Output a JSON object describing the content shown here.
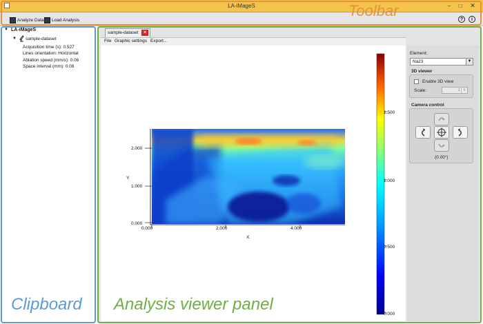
{
  "window": {
    "title": "LA-iMageS"
  },
  "toolbar": {
    "analyze_label": "Analyze Data",
    "load_label": "Load Analysis",
    "help_glyph": "?",
    "info_glyph": "i"
  },
  "annotations": {
    "toolbar": "Toolbar",
    "clipboard": "Clipboard",
    "analysis": "Analysis viewer panel"
  },
  "tree": {
    "root": "LA-iMageS",
    "dataset": "sample-dataset",
    "props": [
      "Acquisition time (s): 0.527",
      "Lines orientation: Horizontal",
      "Ablation speed (mm/s): 0.06",
      "Space interval (mm): 0.08"
    ]
  },
  "viewer": {
    "tab_label": "sample-dataset",
    "menu": [
      "File",
      "Graphic settings",
      "Export..."
    ]
  },
  "plot": {
    "x_label": "X",
    "y_label": "Y",
    "x_ticks": [
      "0.000",
      "2.000",
      "4.000"
    ],
    "y_ticks": [
      "2.000",
      "1.000",
      "0.000"
    ],
    "colorbar_ticks": [
      "1.500",
      "1.000",
      "0.500",
      "0.000"
    ]
  },
  "controls": {
    "element_label": "Element:",
    "element_value": "Na23",
    "viewer3d_title": "3D viewer",
    "enable3d_label": "Enable 3D view",
    "scale_label": "Scale:",
    "scale_value": "1",
    "camera_title": "Camera control",
    "camera_angle": "(0.00°)"
  },
  "colors": {
    "toolbar_highlight": "#e8913a",
    "clipboard_highlight": "#5b9bd5",
    "analysis_highlight": "#70ad47"
  }
}
